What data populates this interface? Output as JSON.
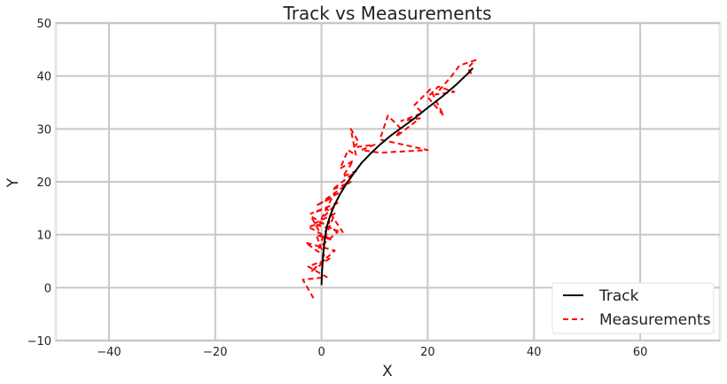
{
  "chart_data": {
    "type": "line",
    "title": "Track vs Measurements",
    "xlabel": "X",
    "ylabel": "Y",
    "xlim": [
      -50,
      75
    ],
    "ylim": [
      -10,
      50
    ],
    "xticks": [
      -40,
      -20,
      0,
      20,
      40,
      60
    ],
    "yticks": [
      -10,
      0,
      10,
      20,
      30,
      40,
      50
    ],
    "xtick_labels": [
      "−40",
      "−20",
      "0",
      "20",
      "40",
      "60"
    ],
    "ytick_labels": [
      "−10",
      "0",
      "10",
      "20",
      "30",
      "40",
      "50"
    ],
    "grid": true,
    "legend_position": "lower-right",
    "series": [
      {
        "name": "Track",
        "color": "#000000",
        "style": "solid",
        "x": [
          0.0,
          0.1,
          0.3,
          0.6,
          1.0,
          1.6,
          2.4,
          3.4,
          4.6,
          6.0,
          7.5,
          9.2,
          11.0,
          13.0,
          15.2,
          17.5,
          20.0,
          22.6,
          25.2,
          27.6,
          28.5
        ],
        "y": [
          0.5,
          3.0,
          6.0,
          9.0,
          11.5,
          13.5,
          15.5,
          17.5,
          19.5,
          21.5,
          23.5,
          25.3,
          27.0,
          28.7,
          30.3,
          32.0,
          34.0,
          36.0,
          38.2,
          40.5,
          41.5
        ]
      },
      {
        "name": "Measurements",
        "color": "#ff0000",
        "style": "dashed",
        "x": [
          -1.5,
          -3.5,
          1.0,
          -2.5,
          1.5,
          -2.0,
          2.5,
          -3.0,
          0.5,
          -1.0,
          2.0,
          -2.5,
          1.5,
          -0.5,
          3.0,
          -2.0,
          0.5,
          2.5,
          -1.5,
          4.0,
          1.0,
          -2.0,
          3.0,
          0.0,
          2.0,
          -1.0,
          3.5,
          0.5,
          5.5,
          2.0,
          6.5,
          4.0,
          6.0,
          3.5,
          5.0,
          6.5,
          5.5,
          7.0,
          6.0,
          10.0,
          7.5,
          11.0,
          20.0,
          11.0,
          12.5,
          15.0,
          14.0,
          18.5,
          15.0,
          19.0,
          17.5,
          20.5,
          23.0,
          20.0,
          22.0,
          25.0,
          21.5,
          24.5,
          26.0,
          29.0,
          27.5,
          28.5
        ],
        "y": [
          -2.0,
          1.5,
          2.0,
          4.0,
          5.5,
          3.0,
          7.0,
          8.5,
          6.0,
          10.0,
          9.0,
          11.5,
          12.5,
          7.5,
          10.5,
          13.5,
          9.0,
          14.0,
          12.0,
          10.5,
          15.0,
          14.0,
          16.0,
          13.0,
          17.0,
          15.5,
          18.0,
          16.5,
          20.0,
          18.5,
          22.0,
          21.0,
          24.0,
          22.5,
          26.0,
          25.0,
          30.0,
          27.5,
          26.5,
          27.0,
          26.0,
          25.5,
          26.0,
          28.0,
          32.5,
          30.0,
          28.5,
          32.0,
          31.5,
          33.0,
          34.5,
          37.5,
          32.5,
          36.0,
          38.0,
          37.0,
          36.5,
          40.0,
          42.0,
          43.0,
          41.5,
          40.0
        ]
      }
    ]
  },
  "colors": {
    "background": "#ffffff",
    "plot_background": "#ffffff",
    "grid": "#c8c8c8",
    "axis_spine": "#e6e6e6",
    "legend_border": "#e0e0e0"
  }
}
